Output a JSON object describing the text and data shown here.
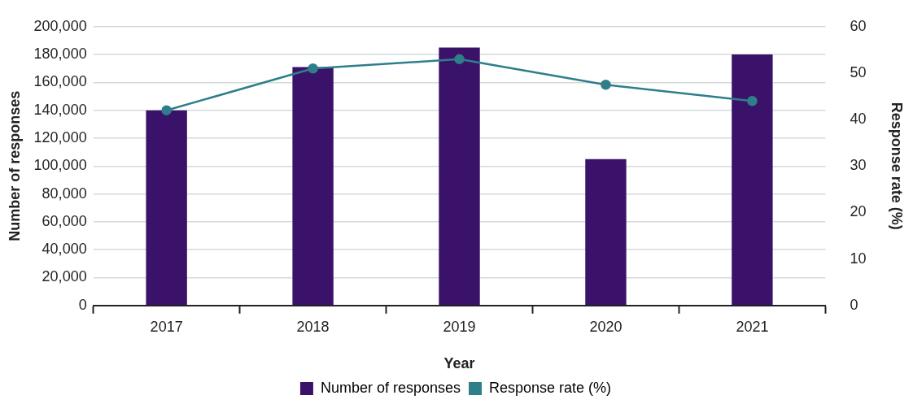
{
  "chart_data": {
    "type": "bar",
    "xlabel": "Year",
    "ylabel": "Number of responses",
    "y2label": "Response rate (%)",
    "categories": [
      "2017",
      "2018",
      "2019",
      "2020",
      "2021"
    ],
    "series": [
      {
        "name": "Number of responses",
        "color": "#3b1269",
        "values": [
          140000,
          171000,
          185000,
          105000,
          180000
        ]
      },
      {
        "name": "Response rate (%)",
        "type": "line",
        "axis": "y2",
        "color": "#2e7f8a",
        "marker": "circle",
        "values": [
          42,
          51,
          53,
          47.5,
          44
        ]
      }
    ],
    "ylim": [
      0,
      200000
    ],
    "yticks": [
      0,
      {
        "value": 20000,
        "label": "20,000"
      },
      {
        "value": 40000,
        "label": "40,000"
      },
      {
        "value": 60000,
        "label": "60,000"
      },
      {
        "value": 80000,
        "label": "80,000"
      },
      {
        "value": 100000,
        "label": "100,000"
      },
      {
        "value": 120000,
        "label": "120,000"
      },
      {
        "value": 140000,
        "label": "140,000"
      },
      {
        "value": 160000,
        "label": "160,000"
      },
      {
        "value": 180000,
        "label": "180,000"
      },
      {
        "value": 200000,
        "label": "200,000"
      }
    ],
    "y2lim": [
      0,
      60
    ],
    "y2ticks": [
      0,
      10,
      20,
      30,
      40,
      50,
      60
    ],
    "grid": "y",
    "legend": "bottom"
  }
}
